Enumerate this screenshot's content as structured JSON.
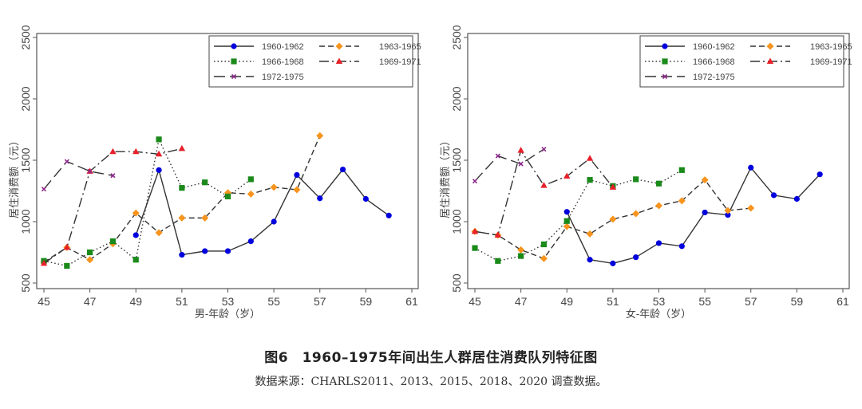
{
  "figure": {
    "title": "图6　1960–1975年间出生人群居住消费队列特征图",
    "source": "数据来源：CHARLS2011、2013、2015、2018、2020 调查数据。"
  },
  "chart_data": [
    {
      "type": "line",
      "id": "male",
      "title": "",
      "xlabel": "男-年龄（岁）",
      "ylabel": "居住消费额（元）",
      "xlim": [
        45,
        61
      ],
      "ylim": [
        500,
        2500
      ],
      "xticks": [
        45,
        47,
        49,
        51,
        53,
        55,
        57,
        59,
        61
      ],
      "yticks": [
        500,
        1000,
        1500,
        2000,
        2500
      ],
      "grid": false,
      "legend_position": "top-right",
      "series": [
        {
          "name": "1960-1962",
          "color": "#0000dd",
          "marker": "circle",
          "line": "solid",
          "x": [
            49,
            50,
            51,
            52,
            53,
            54,
            55,
            56,
            57,
            58,
            59,
            60
          ],
          "values": [
            890,
            1420,
            730,
            760,
            760,
            840,
            1000,
            1380,
            1190,
            1425,
            1185,
            1050
          ]
        },
        {
          "name": "1963-1965",
          "color": "#f7941d",
          "marker": "diamond",
          "line": "dash",
          "x": [
            45,
            46,
            47,
            48,
            49,
            50,
            51,
            52,
            53,
            54,
            55,
            56,
            57
          ],
          "values": [
            670,
            790,
            690,
            820,
            1070,
            910,
            1030,
            1030,
            1235,
            1225,
            1280,
            1260,
            1700
          ]
        },
        {
          "name": "1966-1968",
          "color": "#1a8a1a",
          "marker": "square",
          "line": "dot",
          "x": [
            45,
            46,
            47,
            48,
            49,
            50,
            51,
            52,
            53,
            54
          ],
          "values": [
            680,
            640,
            750,
            840,
            690,
            1670,
            1275,
            1320,
            1205,
            1345
          ]
        },
        {
          "name": "1969-1971",
          "color": "#e8202a",
          "marker": "triangle",
          "line": "dashdot",
          "x": [
            45,
            46,
            47,
            48,
            49,
            50,
            51
          ],
          "values": [
            660,
            790,
            1410,
            1570,
            1570,
            1550,
            1595
          ]
        },
        {
          "name": "1972-1975",
          "color": "#8b2a8b",
          "marker": "cross",
          "line": "longdash",
          "x": [
            45,
            46,
            47,
            48
          ],
          "values": [
            1265,
            1490,
            1410,
            1375
          ]
        }
      ]
    },
    {
      "type": "line",
      "id": "female",
      "title": "",
      "xlabel": "女-年龄（岁）",
      "ylabel": "居住消费额（元）",
      "xlim": [
        45,
        61
      ],
      "ylim": [
        500,
        2500
      ],
      "xticks": [
        45,
        47,
        49,
        51,
        53,
        55,
        57,
        59,
        61
      ],
      "yticks": [
        500,
        1000,
        1500,
        2000,
        2500
      ],
      "grid": false,
      "legend_position": "top-right",
      "series": [
        {
          "name": "1960-1962",
          "color": "#0000dd",
          "marker": "circle",
          "line": "solid",
          "x": [
            49,
            50,
            51,
            52,
            53,
            54,
            55,
            56,
            57,
            58,
            59,
            60
          ],
          "values": [
            1080,
            690,
            660,
            710,
            825,
            800,
            1075,
            1055,
            1440,
            1215,
            1185,
            1385
          ]
        },
        {
          "name": "1963-1965",
          "color": "#f7941d",
          "marker": "diamond",
          "line": "dash",
          "x": [
            45,
            46,
            47,
            48,
            49,
            50,
            51,
            52,
            53,
            54,
            55,
            56,
            57
          ],
          "values": [
            920,
            890,
            770,
            700,
            960,
            900,
            1020,
            1065,
            1130,
            1170,
            1340,
            1090,
            1110
          ]
        },
        {
          "name": "1966-1968",
          "color": "#1a8a1a",
          "marker": "square",
          "line": "dot",
          "x": [
            45,
            46,
            47,
            48,
            49,
            50,
            51,
            52,
            53,
            54
          ],
          "values": [
            785,
            680,
            720,
            815,
            1005,
            1340,
            1290,
            1345,
            1310,
            1420
          ]
        },
        {
          "name": "1969-1971",
          "color": "#e8202a",
          "marker": "triangle",
          "line": "dashdot",
          "x": [
            45,
            46,
            47,
            48,
            49,
            50,
            51
          ],
          "values": [
            920,
            890,
            1580,
            1295,
            1370,
            1515,
            1280
          ]
        },
        {
          "name": "1972-1975",
          "color": "#8b2a8b",
          "marker": "cross",
          "line": "longdash",
          "x": [
            45,
            46,
            47,
            48
          ],
          "values": [
            1330,
            1535,
            1470,
            1590
          ]
        }
      ]
    }
  ]
}
